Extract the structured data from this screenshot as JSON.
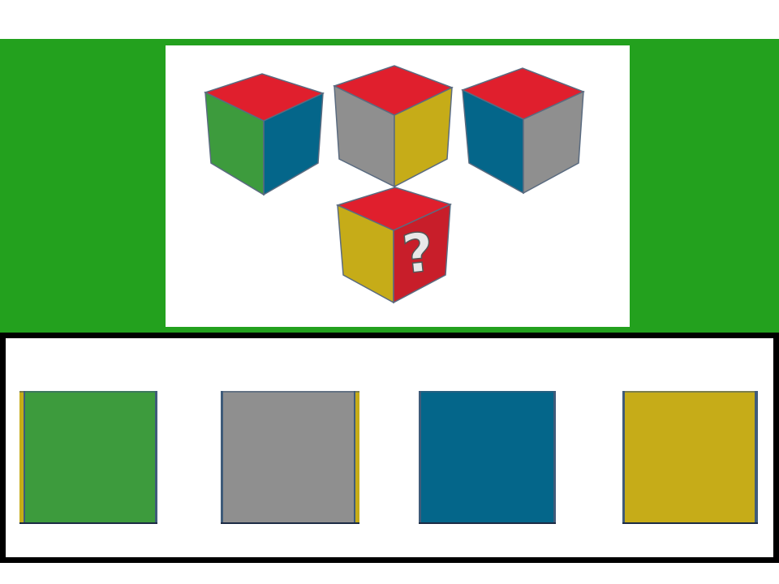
{
  "puzzle": {
    "cubes": [
      {
        "top": "#e01f2d",
        "left": "#3d9b3d",
        "right": "#04668a"
      },
      {
        "top": "#e01f2d",
        "left": "#8f8f8f",
        "right": "#c6ac18"
      },
      {
        "top": "#e01f2d",
        "left": "#04668a",
        "right": "#8f8f8f"
      }
    ],
    "question_cube": {
      "top": "#e01f2d",
      "left": "#c6ac18",
      "right": "#c81e2a",
      "mark": "?"
    }
  },
  "answers": [
    {
      "face": "#3d9b3d"
    },
    {
      "face": "#8f8f8f"
    },
    {
      "face": "#04668a"
    },
    {
      "face": "#c6ac18"
    }
  ],
  "colors": {
    "background_band": "#23a11e",
    "frame": "#000000",
    "edge": "#3f5b7a"
  }
}
